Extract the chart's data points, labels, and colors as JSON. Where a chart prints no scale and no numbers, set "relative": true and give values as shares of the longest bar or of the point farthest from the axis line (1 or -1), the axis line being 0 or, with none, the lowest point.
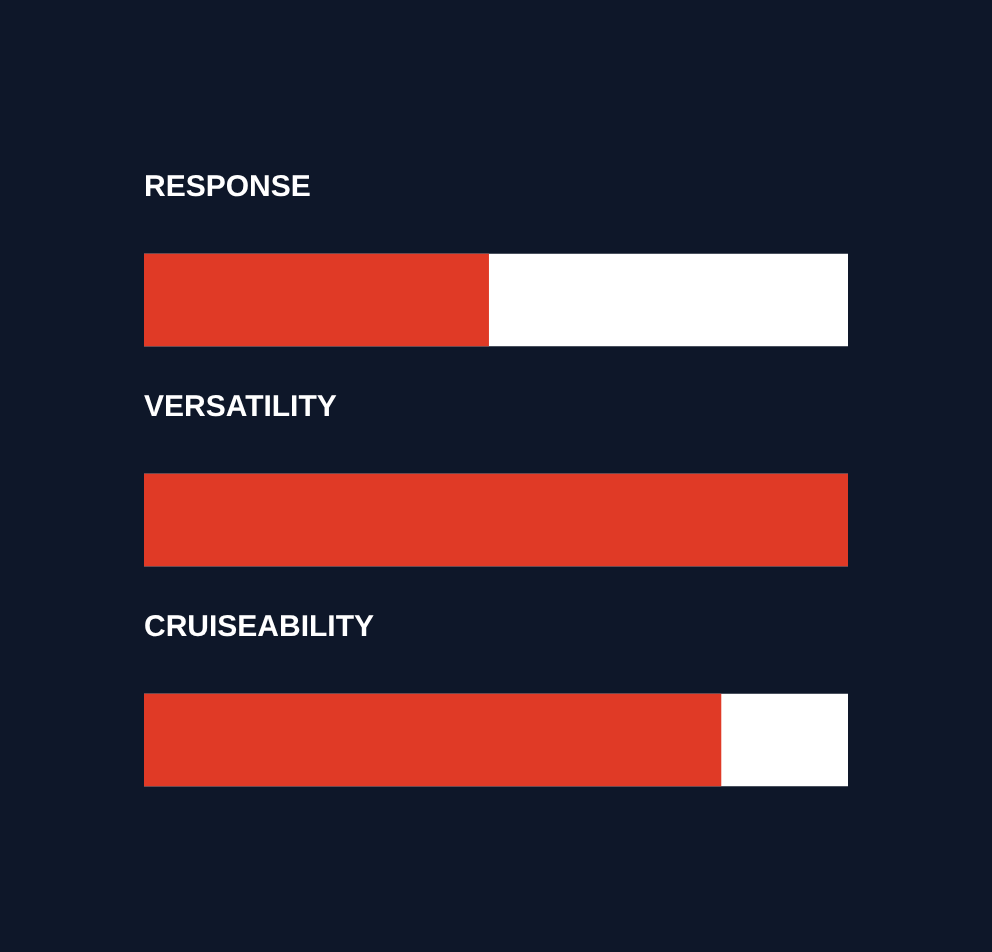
{
  "chart_data": {
    "type": "bar",
    "orientation": "horizontal",
    "relative": true,
    "categories": [
      "RESPONSE",
      "VERSATILITY",
      "CRUISEABILITY"
    ],
    "series": [
      {
        "color": "#e03a26",
        "values": [
          0.49,
          1,
          0.82
        ]
      }
    ],
    "legend": false
  }
}
